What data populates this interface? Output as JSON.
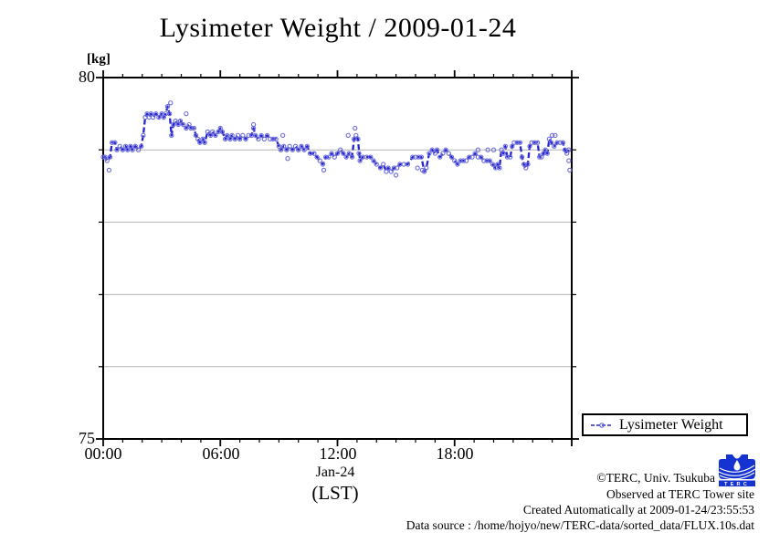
{
  "title": "Lysimeter Weight / 2009-01-24",
  "y_axis": {
    "unit_label": "[kg]",
    "top_tick": "80",
    "bottom_tick": "75"
  },
  "x_axis": {
    "ticks": [
      "00:00",
      "06:00",
      "12:00",
      "18:00"
    ],
    "date_label": "Jan-24",
    "tz_label": "(LST)"
  },
  "legend": {
    "label": "Lysimeter Weight"
  },
  "footer": {
    "line1": "©TERC, Univ. Tsukuba",
    "line2": "Observed at TERC Tower site",
    "line3": "Created Automatically at 2009-01-24/23:55:53",
    "line4": "Data source : /home/hojyo/new/TERC-data/sorted_data/FLUX.10s.dat",
    "logo_text": "TERC"
  },
  "colors": {
    "line": "#2424cc",
    "marker": "#6b6bdd",
    "grid": "#b3b3b3",
    "axis": "#000000",
    "logo_blue": "#1533d0"
  },
  "chart_data": {
    "type": "line",
    "title": "Lysimeter Weight / 2009-01-24",
    "ylabel": "[kg]",
    "xlabel": "Jan-24 (LST)",
    "ylim": [
      75,
      80
    ],
    "xlim_hours": [
      0,
      24
    ],
    "x_tick_hours": [
      0,
      6,
      12,
      18
    ],
    "x_tick_labels": [
      "00:00",
      "06:00",
      "12:00",
      "18:00"
    ],
    "y_tick_labels_shown": [
      "80",
      "75"
    ],
    "gridlines_y": [
      76,
      77,
      78,
      79
    ],
    "grid": true,
    "legend_position": "outside-bottom-right",
    "series": [
      {
        "name": "Lysimeter Weight",
        "color": "#2424cc",
        "marker_color": "#6b6bdd",
        "style": "dashed-line-with-open-circle-points",
        "points": [
          [
            0,
            78.9
          ],
          [
            0.1,
            78.9
          ],
          [
            0.2,
            78.85
          ],
          [
            0.35,
            78.9
          ],
          [
            0.45,
            79.1
          ],
          [
            0.6,
            79.1
          ],
          [
            0.7,
            79
          ],
          [
            0.85,
            79.05
          ],
          [
            1,
            79
          ],
          [
            1.15,
            79.05
          ],
          [
            1.25,
            79
          ],
          [
            1.4,
            79.05
          ],
          [
            1.5,
            79
          ],
          [
            1.65,
            79.05
          ],
          [
            1.8,
            79
          ],
          [
            1.95,
            79.05
          ],
          [
            2.05,
            79.2
          ],
          [
            2.15,
            79.45
          ],
          [
            2.25,
            79.5
          ],
          [
            2.35,
            79.45
          ],
          [
            2.45,
            79.5
          ],
          [
            2.55,
            79.45
          ],
          [
            2.7,
            79.5
          ],
          [
            2.85,
            79.45
          ],
          [
            3,
            79.5
          ],
          [
            3.1,
            79.45
          ],
          [
            3.2,
            79.5
          ],
          [
            3.3,
            79.6
          ],
          [
            3.4,
            79.5
          ],
          [
            3.5,
            79.2
          ],
          [
            3.6,
            79.35
          ],
          [
            3.7,
            79.4
          ],
          [
            3.85,
            79.35
          ],
          [
            3.95,
            79.4
          ],
          [
            4.1,
            79.35
          ],
          [
            4.25,
            79.3
          ],
          [
            4.4,
            79.35
          ],
          [
            4.5,
            79.3
          ],
          [
            4.65,
            79.3
          ],
          [
            4.75,
            79.2
          ],
          [
            4.85,
            79.15
          ],
          [
            4.95,
            79.1
          ],
          [
            5.1,
            79.15
          ],
          [
            5.2,
            79.1
          ],
          [
            5.35,
            79.25
          ],
          [
            5.5,
            79.2
          ],
          [
            5.6,
            79.25
          ],
          [
            5.75,
            79.2
          ],
          [
            5.9,
            79.25
          ],
          [
            6,
            79.3
          ],
          [
            6.1,
            79.25
          ],
          [
            6.25,
            79.15
          ],
          [
            6.35,
            79.2
          ],
          [
            6.5,
            79.15
          ],
          [
            6.6,
            79.2
          ],
          [
            6.75,
            79.15
          ],
          [
            6.9,
            79.2
          ],
          [
            7,
            79.15
          ],
          [
            7.15,
            79.2
          ],
          [
            7.3,
            79.15
          ],
          [
            7.45,
            79.2
          ],
          [
            7.6,
            79.2
          ],
          [
            7.7,
            79.3
          ],
          [
            7.8,
            79.2
          ],
          [
            7.95,
            79.15
          ],
          [
            8.1,
            79.2
          ],
          [
            8.25,
            79.15
          ],
          [
            8.4,
            79.2
          ],
          [
            8.55,
            79.15
          ],
          [
            8.7,
            79.15
          ],
          [
            8.85,
            79.15
          ],
          [
            9,
            79.05
          ],
          [
            9.1,
            79
          ],
          [
            9.25,
            79.05
          ],
          [
            9.4,
            79
          ],
          [
            9.55,
            79.05
          ],
          [
            9.7,
            79
          ],
          [
            9.85,
            79.05
          ],
          [
            10,
            79
          ],
          [
            10.15,
            79.05
          ],
          [
            10.3,
            79
          ],
          [
            10.45,
            79.05
          ],
          [
            10.6,
            78.95
          ],
          [
            10.8,
            78.95
          ],
          [
            10.95,
            78.9
          ],
          [
            11.1,
            78.85
          ],
          [
            11.25,
            78.8
          ],
          [
            11.4,
            78.9
          ],
          [
            11.55,
            78.9
          ],
          [
            11.7,
            78.95
          ],
          [
            11.85,
            78.9
          ],
          [
            12,
            78.95
          ],
          [
            12.15,
            79
          ],
          [
            12.3,
            78.95
          ],
          [
            12.45,
            78.9
          ],
          [
            12.6,
            78.95
          ],
          [
            12.75,
            78.9
          ],
          [
            12.85,
            79.15
          ],
          [
            12.95,
            79.2
          ],
          [
            13.05,
            79.15
          ],
          [
            13.15,
            78.85
          ],
          [
            13.3,
            78.9
          ],
          [
            13.5,
            78.9
          ],
          [
            13.7,
            78.9
          ],
          [
            13.85,
            78.85
          ],
          [
            14,
            78.8
          ],
          [
            14.2,
            78.75
          ],
          [
            14.35,
            78.8
          ],
          [
            14.5,
            78.7
          ],
          [
            14.6,
            78.75
          ],
          [
            14.75,
            78.7
          ],
          [
            14.9,
            78.75
          ],
          [
            15.05,
            78.75
          ],
          [
            15.2,
            78.8
          ],
          [
            15.4,
            78.8
          ],
          [
            15.6,
            78.8
          ],
          [
            15.85,
            78.9
          ],
          [
            16,
            78.9
          ],
          [
            16.15,
            78.9
          ],
          [
            16.3,
            78.9
          ],
          [
            16.45,
            78.7
          ],
          [
            16.55,
            78.75
          ],
          [
            16.7,
            78.95
          ],
          [
            16.85,
            79
          ],
          [
            17,
            78.95
          ],
          [
            17.1,
            79
          ],
          [
            17.25,
            78.9
          ],
          [
            17.4,
            78.95
          ],
          [
            17.55,
            79
          ],
          [
            17.7,
            78.95
          ],
          [
            17.85,
            78.9
          ],
          [
            18,
            78.85
          ],
          [
            18.15,
            78.8
          ],
          [
            18.3,
            78.85
          ],
          [
            18.45,
            78.85
          ],
          [
            18.6,
            78.85
          ],
          [
            18.75,
            78.9
          ],
          [
            18.9,
            78.9
          ],
          [
            19.05,
            78.95
          ],
          [
            19.2,
            78.9
          ],
          [
            19.35,
            78.9
          ],
          [
            19.5,
            78.85
          ],
          [
            19.65,
            78.85
          ],
          [
            19.8,
            78.85
          ],
          [
            19.95,
            78.8
          ],
          [
            20.1,
            78.75
          ],
          [
            20.2,
            78.8
          ],
          [
            20.3,
            78.75
          ],
          [
            20.4,
            79
          ],
          [
            20.5,
            78.95
          ],
          [
            20.6,
            79.05
          ],
          [
            20.7,
            78.9
          ],
          [
            20.85,
            78.9
          ],
          [
            20.95,
            79.05
          ],
          [
            21.05,
            79.1
          ],
          [
            21.2,
            79.1
          ],
          [
            21.35,
            79.1
          ],
          [
            21.45,
            78.9
          ],
          [
            21.55,
            78.8
          ],
          [
            21.65,
            78.75
          ],
          [
            21.75,
            78.8
          ],
          [
            21.85,
            79.05
          ],
          [
            21.95,
            79.1
          ],
          [
            22.1,
            79.1
          ],
          [
            22.25,
            79.1
          ],
          [
            22.35,
            78.9
          ],
          [
            22.45,
            78.9
          ],
          [
            22.55,
            78.95
          ],
          [
            22.65,
            79
          ],
          [
            22.75,
            78.95
          ],
          [
            22.85,
            79.15
          ],
          [
            22.95,
            79.1
          ],
          [
            23.1,
            79.05
          ],
          [
            23.25,
            79.1
          ],
          [
            23.4,
            79.1
          ],
          [
            23.55,
            79.1
          ],
          [
            23.65,
            79
          ],
          [
            23.75,
            78.95
          ],
          [
            23.85,
            79
          ]
        ]
      }
    ],
    "outlier_points": [
      [
        0.3,
        78.72
      ],
      [
        3.45,
        79.65
      ],
      [
        4.25,
        79.5
      ],
      [
        7.7,
        79.35
      ],
      [
        9.2,
        79.2
      ],
      [
        9.45,
        78.88
      ],
      [
        11.3,
        78.72
      ],
      [
        12.55,
        79.2
      ],
      [
        12.9,
        79.3
      ],
      [
        13.1,
        78.95
      ],
      [
        15,
        78.65
      ],
      [
        16.1,
        78.75
      ],
      [
        16.35,
        78.72
      ],
      [
        19.2,
        79
      ],
      [
        19.7,
        79
      ],
      [
        20,
        79
      ],
      [
        23,
        79.2
      ],
      [
        23.15,
        79.2
      ],
      [
        23.85,
        78.85
      ],
      [
        23.9,
        78.72
      ]
    ]
  }
}
